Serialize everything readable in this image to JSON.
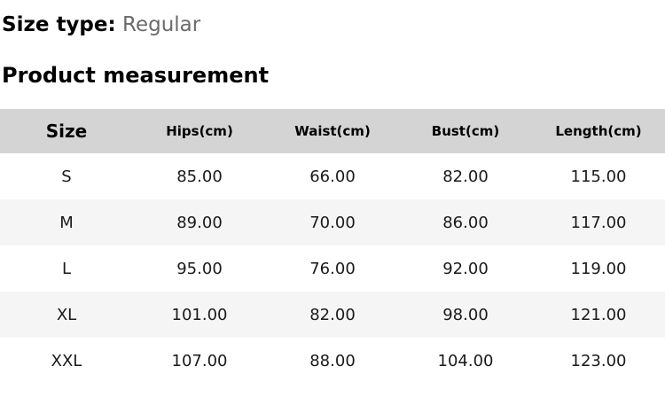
{
  "page": {
    "size_type_label": "Size type:",
    "size_type_value": "Regular",
    "section_title": "Product measurement"
  },
  "table": {
    "columns": [
      "Size",
      "Hips(cm)",
      "Waist(cm)",
      "Bust(cm)",
      "Length(cm)"
    ],
    "rows": [
      [
        "S",
        "85.00",
        "66.00",
        "82.00",
        "115.00"
      ],
      [
        "M",
        "89.00",
        "70.00",
        "86.00",
        "117.00"
      ],
      [
        "L",
        "95.00",
        "76.00",
        "92.00",
        "119.00"
      ],
      [
        "XL",
        "101.00",
        "82.00",
        "98.00",
        "121.00"
      ],
      [
        "XXL",
        "107.00",
        "88.00",
        "104.00",
        "123.00"
      ]
    ]
  },
  "colors": {
    "header_bg": "#d4d4d4",
    "alt_row_bg": "#f5f5f5",
    "muted_text": "#6b6b6b",
    "text": "#111111"
  }
}
